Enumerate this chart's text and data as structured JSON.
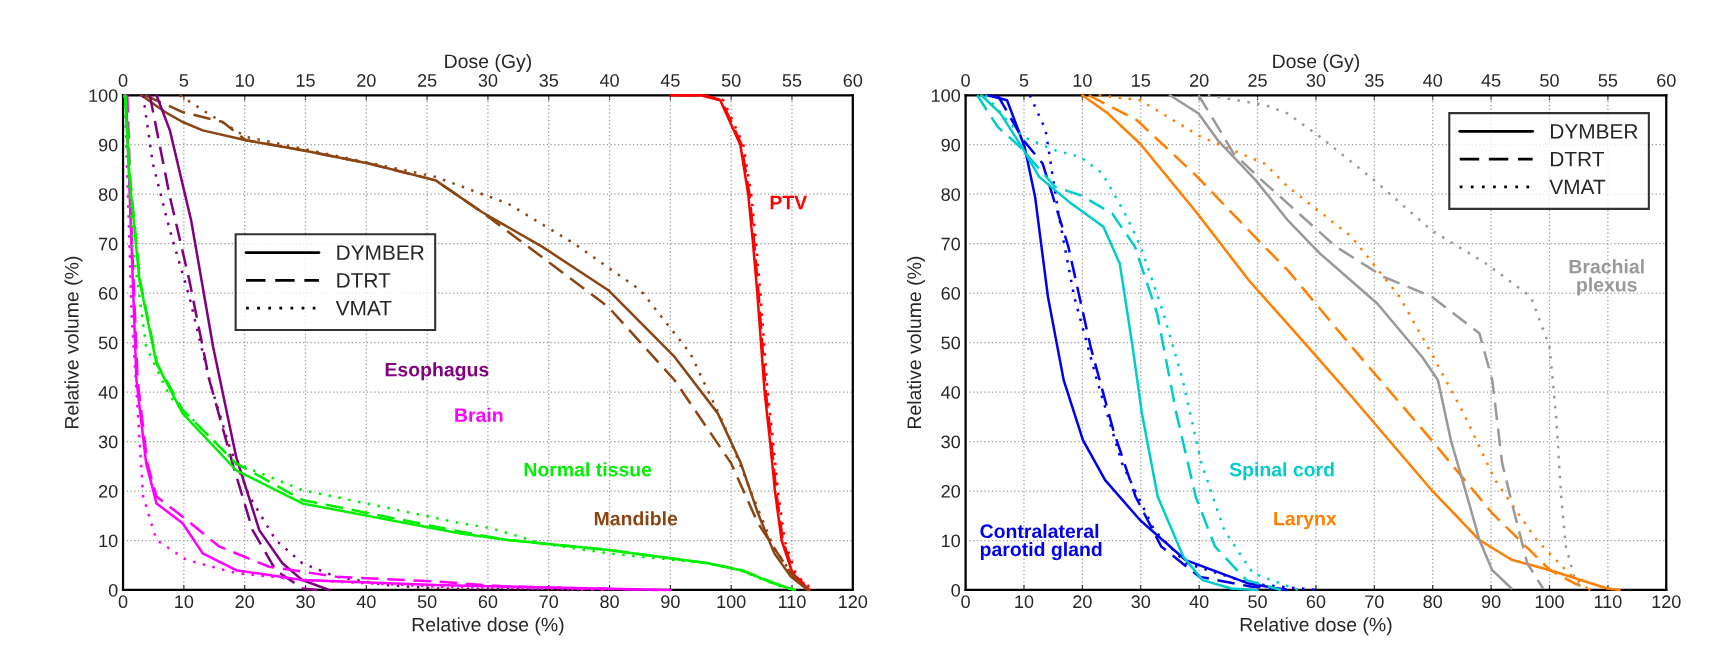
{
  "chart_data": [
    {
      "type": "line",
      "xlabel": "Relative dose (%)",
      "x2label": "Dose (Gy)",
      "ylabel": "Relative volume (%)",
      "xlim": [
        0,
        120
      ],
      "xticks": [
        0,
        10,
        20,
        30,
        40,
        50,
        60,
        70,
        80,
        90,
        100,
        110,
        120
      ],
      "x2lim": [
        0,
        60
      ],
      "x2ticks": [
        0,
        5,
        10,
        15,
        20,
        25,
        30,
        35,
        40,
        45,
        50,
        55,
        60
      ],
      "ylim": [
        0,
        100
      ],
      "yticks": [
        0,
        10,
        20,
        30,
        40,
        50,
        60,
        70,
        80,
        90,
        100
      ],
      "grid": true,
      "legend": "left",
      "series": [
        {
          "name": "DYMBER",
          "color": "#000000",
          "line_style": "solid"
        },
        {
          "name": "DTRT",
          "color": "#000000",
          "line_style": "dashed"
        },
        {
          "name": "VMAT",
          "color": "#000000",
          "line_style": "dotted"
        },
        {
          "name": "PTV",
          "color": "#ff0000",
          "line_style": "solid",
          "x": [
            90,
            95,
            98.2,
            101.5,
            102.8,
            103.6,
            104.3,
            104.9,
            105.5,
            106.4,
            107.2,
            108.3,
            110.2,
            112.9
          ],
          "values": [
            100,
            100,
            99,
            90,
            80,
            70,
            60,
            50,
            40,
            30,
            20,
            10,
            3,
            0
          ]
        },
        {
          "color": "#ff0000",
          "line_style": "dashed",
          "x": [
            91,
            95.5,
            98.4,
            101.7,
            103,
            103.8,
            104.5,
            105.1,
            105.7,
            106.6,
            107.4,
            108.5,
            110.4,
            113.1
          ],
          "values": [
            100,
            100,
            99,
            90,
            80,
            70,
            60,
            50,
            40,
            30,
            20,
            10,
            3,
            0
          ]
        },
        {
          "color": "#ff0000",
          "line_style": "dotted",
          "x": [
            92,
            96,
            98.7,
            102,
            103.3,
            104.1,
            104.8,
            105.4,
            106,
            106.9,
            107.7,
            108.8,
            110.7,
            113.4
          ],
          "values": [
            100,
            100,
            99,
            90,
            80,
            70,
            60,
            50,
            40,
            30,
            20,
            10,
            3,
            0
          ]
        },
        {
          "name": "Mandible",
          "color": "#8b4513",
          "line_style": "solid",
          "x": [
            3,
            6.8,
            9.8,
            13.1,
            20.2,
            29.5,
            40.4,
            51.4,
            59,
            68.9,
            79.8,
            90.7,
            97.8,
            101.6,
            104.4,
            107.1,
            109.8,
            112.6
          ],
          "values": [
            100,
            96.7,
            94.6,
            92.9,
            90.9,
            88.9,
            86.2,
            82.8,
            76.4,
            69.4,
            60.6,
            47.1,
            35.7,
            25.6,
            15.5,
            7.4,
            2.7,
            0
          ]
        },
        {
          "color": "#8b4513",
          "line_style": "dashed",
          "x": [
            3.6,
            9.8,
            16.4,
            20.2,
            29.5,
            40.4,
            51.4,
            59,
            68.9,
            79.8,
            90.7,
            100,
            104.4,
            109.8,
            112.1
          ],
          "values": [
            100,
            96.6,
            94.6,
            90.9,
            88.9,
            86.2,
            82.8,
            76.4,
            67.3,
            57.2,
            42.4,
            25.6,
            13.5,
            3.4,
            0
          ]
        },
        {
          "color": "#8b4513",
          "line_style": "dotted",
          "x": [
            9.3,
            13.1,
            20.2,
            29.5,
            51.4,
            63.3,
            74.2,
            85.1,
            93.3,
            98.7,
            102.5,
            106.9,
            110.7,
            112.9
          ],
          "values": [
            100,
            97,
            91.6,
            89.2,
            83.5,
            78.1,
            70,
            60.6,
            47.8,
            33.7,
            22.2,
            8.8,
            2,
            0
          ]
        },
        {
          "name": "Esophagus",
          "color": "#800080",
          "line_style": "solid",
          "x": [
            5.5,
            7.7,
            11.2,
            14.8,
            18.6,
            22.4,
            26.2,
            29.5,
            33.9
          ],
          "values": [
            100,
            92.9,
            74.7,
            49.2,
            26.9,
            12.1,
            5.4,
            2,
            0
          ]
        },
        {
          "color": "#800080",
          "line_style": "dashed",
          "x": [
            4.4,
            7.7,
            10.9,
            14.2,
            18,
            21.3,
            25.1,
            29.5,
            32
          ],
          "values": [
            100,
            79.5,
            62.6,
            42.4,
            25.6,
            12.1,
            4,
            0.3,
            0
          ]
        },
        {
          "color": "#800080",
          "line_style": "dotted",
          "x": [
            3.3,
            4.9,
            7.7,
            10.9,
            14.2,
            17.5,
            20.8,
            25.1,
            29.5,
            35,
            43.2,
            51.4,
            75
          ],
          "values": [
            100,
            86.2,
            72.7,
            59.3,
            42.4,
            29,
            18.9,
            10.1,
            5.4,
            2.7,
            1,
            0.3,
            0
          ]
        },
        {
          "name": "Brain",
          "color": "#ff00ff",
          "line_style": "solid",
          "x": [
            0.5,
            1.4,
            2.2,
            3.8,
            5.5,
            9.8,
            13.1,
            18.6,
            29.5,
            51.4,
            70,
            90
          ],
          "values": [
            100,
            69.4,
            42.4,
            25.6,
            17.5,
            13.5,
            7.4,
            4,
            2,
            1,
            0.5,
            0
          ]
        },
        {
          "color": "#ff00ff",
          "line_style": "dashed",
          "x": [
            0.7,
            1.5,
            2.4,
            4,
            5.5,
            9.8,
            15.8,
            24,
            35,
            51.4,
            63,
            88
          ],
          "values": [
            100,
            69.4,
            42.4,
            25.6,
            18.9,
            14.8,
            8.8,
            4.7,
            2.7,
            1.7,
            0.7,
            0
          ]
        },
        {
          "color": "#ff00ff",
          "line_style": "dotted",
          "x": [
            0.3,
            1.4,
            3.3,
            5.5,
            10.4,
            18.6,
            29.5,
            51.4,
            80
          ],
          "values": [
            100,
            55.9,
            18.9,
            10.1,
            6.1,
            3.4,
            2,
            0.7,
            0
          ]
        },
        {
          "name": "Normal tissue",
          "color": "#00ee00",
          "line_style": "solid",
          "x": [
            0.3,
            1.1,
            2.7,
            5.5,
            9.8,
            18.6,
            29.5,
            55.5,
            63.3,
            79.8,
            96.2,
            101.6,
            107.1,
            110.4
          ],
          "values": [
            100,
            82.8,
            62.6,
            45.8,
            35.7,
            24.2,
            17.5,
            11.4,
            10.1,
            8.1,
            5.4,
            4,
            1.3,
            0
          ]
        },
        {
          "color": "#00ee00",
          "line_style": "dashed",
          "x": [
            0.4,
            1.2,
            2.8,
            5.6,
            9.8,
            18.6,
            29.5,
            55.5,
            63.3,
            79.8,
            96.2,
            101.8,
            107.3,
            110.6
          ],
          "values": [
            100,
            82.8,
            62.6,
            45.8,
            36.4,
            25.6,
            18.2,
            11.8,
            10.1,
            8.1,
            5.4,
            4,
            1.3,
            0
          ]
        },
        {
          "color": "#00ee00",
          "line_style": "dotted",
          "x": [
            0.2,
            1.6,
            3.8,
            7.7,
            18.6,
            29.5,
            55.5,
            60.5,
            68.9,
            79.8,
            96.2,
            101.4,
            106.9,
            110.2
          ],
          "values": [
            100,
            69.4,
            49.2,
            39.1,
            25.6,
            20.2,
            13.5,
            12.5,
            9.4,
            7.4,
            5.4,
            4,
            1.3,
            0
          ]
        }
      ]
    },
    {
      "type": "line",
      "xlabel": "Relative dose (%)",
      "x2label": "Dose (Gy)",
      "ylabel": "Relative volume (%)",
      "xlim": [
        0,
        120
      ],
      "xticks": [
        0,
        10,
        20,
        30,
        40,
        50,
        60,
        70,
        80,
        90,
        100,
        110,
        120
      ],
      "x2lim": [
        0,
        60
      ],
      "x2ticks": [
        0,
        5,
        10,
        15,
        20,
        25,
        30,
        35,
        40,
        45,
        50,
        55,
        60
      ],
      "ylim": [
        0,
        100
      ],
      "yticks": [
        0,
        10,
        20,
        30,
        40,
        50,
        60,
        70,
        80,
        90,
        100
      ],
      "grid": true,
      "legend": "top right",
      "series": [
        {
          "name": "DYMBER",
          "color": "#000000",
          "line_style": "solid"
        },
        {
          "name": "DTRT",
          "color": "#000000",
          "line_style": "dashed"
        },
        {
          "name": "VMAT",
          "color": "#000000",
          "line_style": "dotted"
        },
        {
          "name": "Contralateral\nparotid gland",
          "color": "#0000ee",
          "line_style": "solid",
          "x": [
            3.8,
            7.1,
            10.1,
            11.9,
            14.1,
            16.8,
            20.1,
            23.9,
            29.9,
            37.6,
            48.5,
            55
          ],
          "values": [
            100,
            99,
            89.6,
            79.5,
            59.3,
            42.4,
            30.3,
            22.2,
            14.1,
            6.1,
            1.3,
            0
          ]
        },
        {
          "color": "#0000ee",
          "line_style": "dashed",
          "x": [
            5.5,
            9.9,
            13.2,
            17.6,
            21.4,
            25.3,
            29.1,
            33.5,
            40,
            48.8,
            56
          ],
          "values": [
            100,
            90.9,
            86.2,
            69.4,
            49.2,
            32.3,
            18.9,
            8.8,
            2.7,
            0.7,
            0
          ]
        },
        {
          "color": "#0000ee",
          "line_style": "dotted",
          "x": [
            11,
            13.7,
            15.9,
            18.6,
            22.5,
            26.8,
            32.3,
            37.8,
            48.8,
            60
          ],
          "values": [
            100,
            93,
            76.1,
            59.3,
            42.4,
            25.6,
            12.1,
            5.4,
            1.3,
            0
          ]
        },
        {
          "name": "Spinal cord",
          "color": "#00cccc",
          "line_style": "solid",
          "x": [
            2.7,
            6,
            9.6,
            12.6,
            18.1,
            23.6,
            26.4,
            28.6,
            30.2,
            32.9,
            37.3,
            40.6,
            45.5,
            50
          ],
          "values": [
            100,
            96.3,
            89.6,
            83.5,
            78.1,
            73.4,
            66,
            49.2,
            35.7,
            18.9,
            6.7,
            2,
            0.3,
            0
          ]
        },
        {
          "color": "#00cccc",
          "line_style": "dashed",
          "x": [
            2,
            5.5,
            9.3,
            15.3,
            19.7,
            25.1,
            29,
            32.8,
            36.1,
            39.4,
            42.7,
            48.1,
            54
          ],
          "values": [
            100,
            93.6,
            89.6,
            81.5,
            79.8,
            76.1,
            69.4,
            55.9,
            35.7,
            18.9,
            8.8,
            2,
            0
          ]
        },
        {
          "color": "#00cccc",
          "line_style": "dotted",
          "x": [
            3.4,
            7.1,
            9.8,
            15.3,
            19.7,
            23.4,
            27.3,
            30,
            33.9,
            37.2,
            40.4,
            44.3,
            49.2,
            57
          ],
          "values": [
            100,
            95,
            91.6,
            88.9,
            87.5,
            84.2,
            76.1,
            69.4,
            55.9,
            42.4,
            25.6,
            12.1,
            3.4,
            0
          ]
        },
        {
          "name": "Larynx",
          "color": "#ff7f00",
          "line_style": "solid",
          "x": [
            20,
            24.4,
            29.9,
            39.7,
            48.5,
            58,
            66.1,
            79.8,
            88,
            93.5,
            100.1,
            109.9,
            112
          ],
          "values": [
            100,
            96.3,
            90.2,
            76.1,
            62.6,
            50,
            39.1,
            20.2,
            10.1,
            6.1,
            4,
            0.3,
            0
          ]
        },
        {
          "color": "#ff7f00",
          "line_style": "dashed",
          "x": [
            21.1,
            29.3,
            39.7,
            50.1,
            55.2,
            66.1,
            79.8,
            90.2,
            100.1,
            104.4,
            107
          ],
          "values": [
            100,
            95,
            83.5,
            70.7,
            64.6,
            49.2,
            30.3,
            15.5,
            4,
            1.3,
            0
          ]
        },
        {
          "color": "#ff7f00",
          "line_style": "dotted",
          "x": [
            22.8,
            29.9,
            40.3,
            51.2,
            55.2,
            66.1,
            74.3,
            79.8,
            85.3,
            90.7,
            97.8,
            103.3,
            106.5
          ],
          "values": [
            100,
            99,
            91.6,
            86.2,
            81.5,
            71.4,
            59.3,
            47.8,
            35.7,
            22.2,
            10.1,
            3.4,
            0.3
          ]
        },
        {
          "name": "Brachial\nplexus",
          "color": "#999999",
          "line_style": "solid",
          "x": [
            35,
            39.9,
            43.2,
            49.7,
            55.2,
            60.7,
            70.5,
            78.2,
            80.9,
            83.1,
            85.9,
            88,
            90.2,
            93.5
          ],
          "values": [
            100,
            96.3,
            90.9,
            82.8,
            74.7,
            68,
            57.9,
            47.1,
            42.4,
            30.3,
            18.9,
            10.1,
            4,
            0.3
          ]
        },
        {
          "color": "#999999",
          "line_style": "dashed",
          "x": [
            39.9,
            43.2,
            45.9,
            51.4,
            55.2,
            63.4,
            71.6,
            79.8,
            88,
            90.2,
            91.9,
            94,
            96.2,
            98.9
          ],
          "values": [
            100,
            93.6,
            88.2,
            82.1,
            78.1,
            69.4,
            63.3,
            59.3,
            51.9,
            42.4,
            25.6,
            15.5,
            5.4,
            0.3
          ]
        },
        {
          "color": "#999999",
          "line_style": "dotted",
          "x": [
            41.5,
            51.4,
            55.2,
            60.7,
            70,
            79.8,
            89.1,
            96.8,
            100,
            101.1,
            102,
            102.8,
            104.4,
            105.5
          ],
          "values": [
            100,
            98,
            96.3,
            91.6,
            82.8,
            72.7,
            66,
            59.3,
            49.2,
            35.7,
            18.9,
            8.8,
            2,
            0.3
          ]
        }
      ]
    }
  ]
}
